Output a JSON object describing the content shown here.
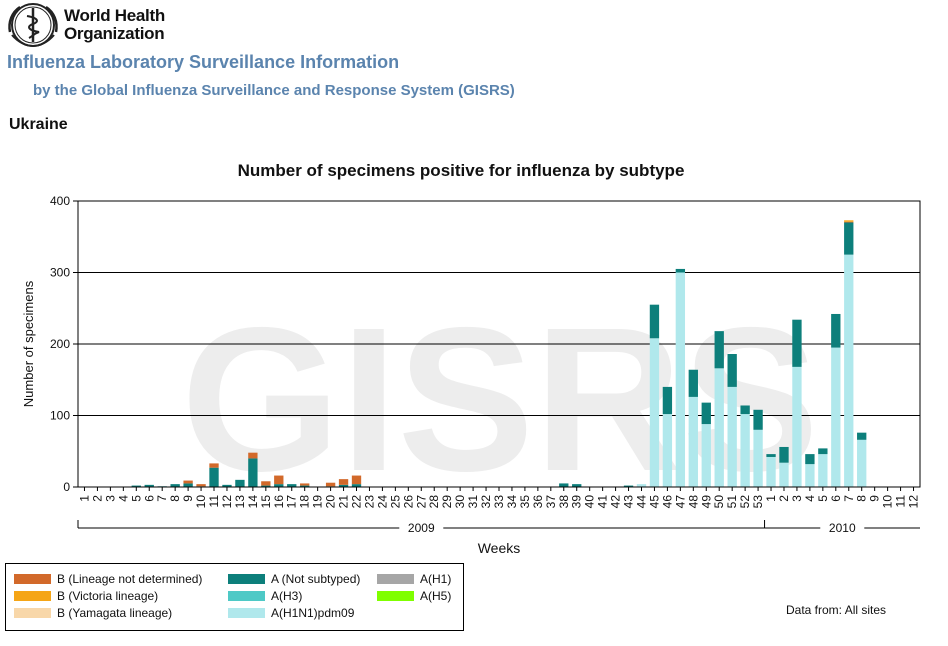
{
  "header": {
    "org_name_line1": "World Health",
    "org_name_line2": "Organization",
    "title": "Influenza Laboratory Surveillance Information",
    "subtitle": "by the Global Influenza Surveillance and Response System (GISRS)",
    "country": "Ukraine"
  },
  "watermark": "GISRS",
  "chart_data": {
    "type": "bar",
    "stacked": true,
    "title": "Number of specimens positive for influenza by subtype",
    "xlabel": "Weeks",
    "ylabel": "Number of specimens",
    "ylim": [
      0,
      400
    ],
    "yticks": [
      0,
      100,
      200,
      300,
      400
    ],
    "categories": [
      "1",
      "2",
      "3",
      "4",
      "5",
      "6",
      "7",
      "8",
      "9",
      "10",
      "11",
      "12",
      "13",
      "14",
      "15",
      "16",
      "17",
      "18",
      "19",
      "20",
      "21",
      "22",
      "23",
      "24",
      "25",
      "26",
      "27",
      "28",
      "29",
      "30",
      "31",
      "32",
      "33",
      "34",
      "35",
      "36",
      "37",
      "38",
      "39",
      "40",
      "41",
      "42",
      "43",
      "44",
      "45",
      "46",
      "47",
      "48",
      "49",
      "50",
      "51",
      "52",
      "53",
      "1",
      "2",
      "3",
      "4",
      "5",
      "6",
      "7",
      "8",
      "9",
      "10",
      "11",
      "12"
    ],
    "year_groups": [
      {
        "label": "2009",
        "start": 0,
        "end": 52
      },
      {
        "label": "2010",
        "start": 53,
        "end": 64
      }
    ],
    "series": [
      {
        "name": "A(H1N1)pdm09",
        "color": "#b0e8ec",
        "values": [
          0,
          0,
          0,
          0,
          0,
          0,
          0,
          0,
          0,
          0,
          0,
          0,
          0,
          0,
          0,
          0,
          0,
          0,
          0,
          0,
          0,
          0,
          0,
          0,
          0,
          0,
          0,
          0,
          0,
          0,
          0,
          0,
          0,
          0,
          0,
          0,
          0,
          0,
          0,
          0,
          0,
          0,
          0,
          4,
          208,
          102,
          300,
          126,
          88,
          166,
          140,
          102,
          80,
          42,
          34,
          168,
          32,
          46,
          195,
          325,
          66,
          0,
          0,
          0,
          0
        ]
      },
      {
        "name": "A(Not subtyped)",
        "color": "#0d7f7b",
        "values": [
          0,
          0,
          0,
          0,
          2,
          3,
          1,
          4,
          5,
          1,
          27,
          3,
          10,
          40,
          2,
          4,
          4,
          2,
          0,
          1,
          3,
          4,
          0,
          0,
          0,
          0,
          0,
          0,
          0,
          0,
          0,
          0,
          0,
          0,
          0,
          0,
          0,
          5,
          4,
          0,
          0,
          0,
          2,
          0,
          47,
          38,
          5,
          38,
          30,
          52,
          46,
          12,
          28,
          4,
          22,
          66,
          14,
          8,
          47,
          45,
          10,
          0,
          0,
          0,
          0
        ]
      },
      {
        "name": "B (Lineage not determined)",
        "color": "#d2692a",
        "values": [
          0,
          0,
          0,
          0,
          0,
          0,
          0,
          0,
          4,
          3,
          6,
          0,
          0,
          8,
          6,
          12,
          0,
          3,
          0,
          5,
          8,
          12,
          0,
          0,
          0,
          0,
          0,
          0,
          0,
          0,
          0,
          0,
          0,
          0,
          0,
          0,
          0,
          0,
          0,
          0,
          0,
          0,
          0,
          0,
          0,
          0,
          0,
          0,
          0,
          0,
          0,
          0,
          0,
          0,
          0,
          0,
          0,
          0,
          0,
          1,
          0,
          0,
          0,
          0,
          0
        ]
      },
      {
        "name": "B (Victoria lineage)",
        "color": "#f5a516",
        "values": [
          0,
          0,
          0,
          0,
          0,
          0,
          0,
          0,
          0,
          0,
          0,
          0,
          0,
          0,
          0,
          0,
          0,
          0,
          0,
          0,
          0,
          0,
          0,
          0,
          0,
          0,
          0,
          0,
          0,
          0,
          0,
          0,
          0,
          0,
          0,
          0,
          0,
          0,
          0,
          0,
          0,
          0,
          0,
          0,
          0,
          0,
          0,
          0,
          0,
          0,
          0,
          0,
          0,
          0,
          0,
          0,
          0,
          0,
          0,
          2,
          0,
          0,
          0,
          0,
          0
        ]
      },
      {
        "name": "B (Yamagata lineage)",
        "color": "#f8d7a9",
        "values": [
          0,
          0,
          0,
          0,
          0,
          0,
          0,
          0,
          0,
          0,
          0,
          0,
          0,
          0,
          0,
          0,
          0,
          0,
          0,
          0,
          0,
          0,
          0,
          0,
          0,
          0,
          0,
          0,
          0,
          0,
          0,
          0,
          0,
          0,
          0,
          0,
          0,
          0,
          0,
          0,
          0,
          0,
          0,
          0,
          0,
          0,
          0,
          0,
          0,
          0,
          0,
          0,
          0,
          0,
          0,
          0,
          0,
          0,
          0,
          0,
          0,
          0,
          0,
          0,
          0
        ]
      },
      {
        "name": "A(H3)",
        "color": "#4ec9c6",
        "values": [
          0,
          0,
          0,
          0,
          0,
          0,
          0,
          0,
          0,
          0,
          0,
          0,
          0,
          0,
          0,
          0,
          0,
          0,
          0,
          0,
          0,
          0,
          0,
          0,
          0,
          0,
          0,
          0,
          0,
          0,
          0,
          0,
          0,
          0,
          0,
          0,
          0,
          0,
          0,
          0,
          0,
          0,
          0,
          0,
          0,
          0,
          0,
          0,
          0,
          0,
          0,
          0,
          0,
          0,
          0,
          0,
          0,
          0,
          0,
          0,
          0,
          0,
          0,
          0,
          0
        ]
      },
      {
        "name": "A(H1)",
        "color": "#a6a6a6",
        "values": [
          0,
          0,
          0,
          0,
          0,
          0,
          0,
          0,
          0,
          0,
          0,
          0,
          0,
          0,
          0,
          0,
          0,
          0,
          0,
          0,
          0,
          0,
          0,
          0,
          0,
          0,
          0,
          0,
          0,
          0,
          0,
          0,
          0,
          0,
          0,
          0,
          0,
          0,
          0,
          0,
          0,
          0,
          0,
          0,
          0,
          0,
          0,
          0,
          0,
          0,
          0,
          0,
          0,
          0,
          0,
          0,
          0,
          0,
          0,
          0,
          0,
          0,
          0,
          0,
          0
        ]
      },
      {
        "name": "A(H5)",
        "color": "#7fff00",
        "values": [
          0,
          0,
          0,
          0,
          0,
          0,
          0,
          0,
          0,
          0,
          0,
          0,
          0,
          0,
          0,
          0,
          0,
          0,
          0,
          0,
          0,
          0,
          0,
          0,
          0,
          0,
          0,
          0,
          0,
          0,
          0,
          0,
          0,
          0,
          0,
          0,
          0,
          0,
          0,
          0,
          0,
          0,
          0,
          0,
          0,
          0,
          0,
          0,
          0,
          0,
          0,
          0,
          0,
          0,
          0,
          0,
          0,
          0,
          0,
          0,
          0,
          0,
          0,
          0,
          0
        ]
      }
    ],
    "stack_order": [
      "A(H1N1)pdm09",
      "A(Not subtyped)",
      "A(H3)",
      "A(H1)",
      "A(H5)",
      "B (Lineage not determined)",
      "B (Victoria lineage)",
      "B (Yamagata lineage)"
    ]
  },
  "legend": {
    "items": [
      {
        "label": "B (Lineage not determined)",
        "color": "#d2692a"
      },
      {
        "label": "B (Victoria lineage)",
        "color": "#f5a516"
      },
      {
        "label": "B (Yamagata lineage)",
        "color": "#f8d7a9"
      },
      {
        "label": "A (Not subtyped)",
        "color": "#0d7f7b"
      },
      {
        "label": "A(H3)",
        "color": "#4ec9c6"
      },
      {
        "label": "A(H1N1)pdm09",
        "color": "#b0e8ec"
      },
      {
        "label": "A(H1)",
        "color": "#a6a6a6"
      },
      {
        "label": "A(H5)",
        "color": "#7fff00"
      }
    ]
  },
  "footer": {
    "data_from": "Data from: All sites"
  }
}
